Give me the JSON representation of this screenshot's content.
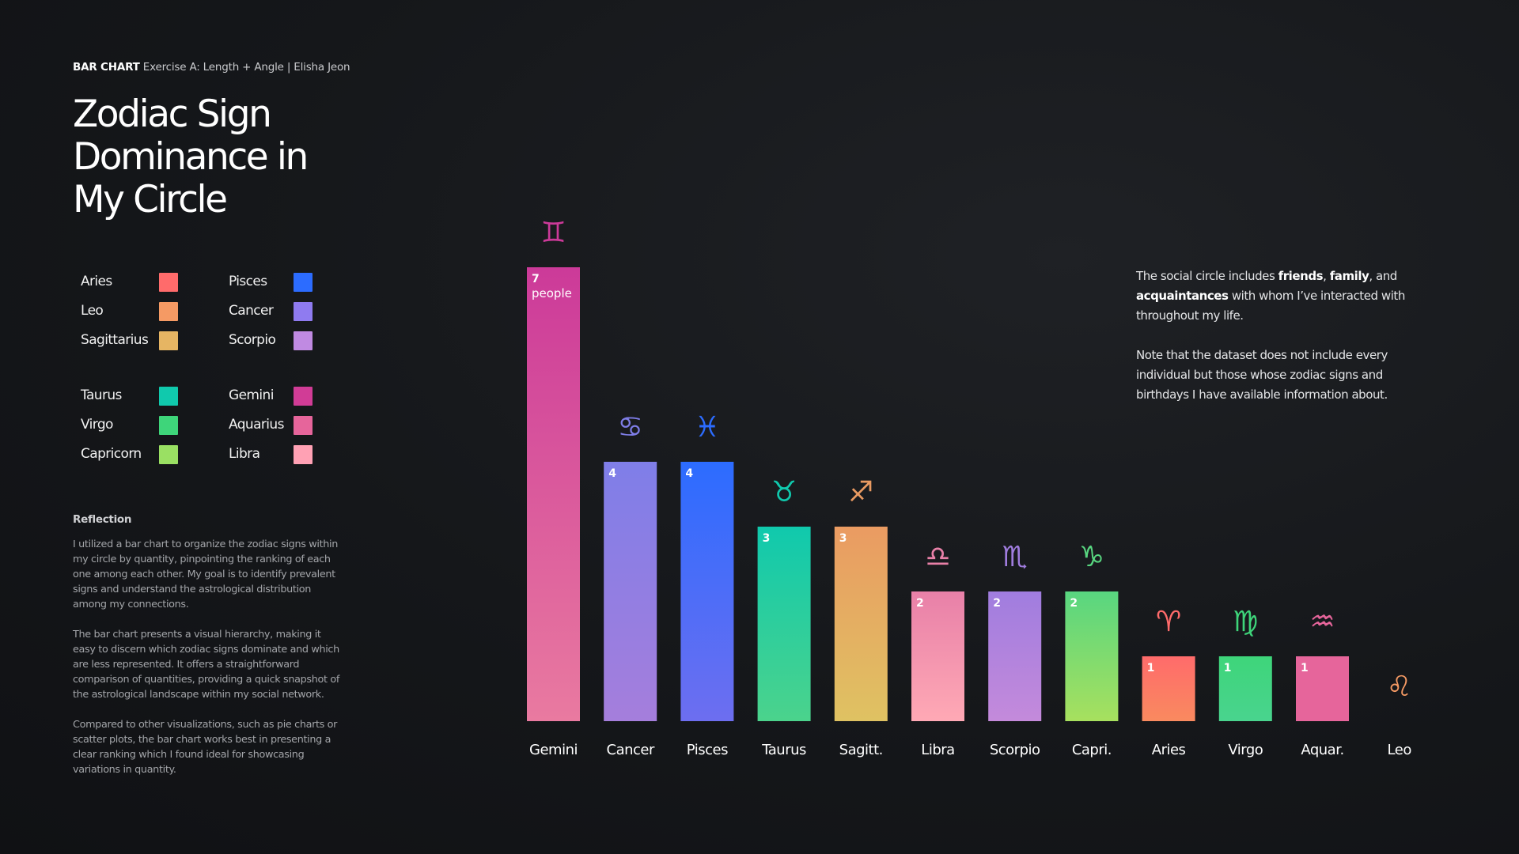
{
  "header": {
    "tag": "BAR CHART",
    "subtitle_rest": " Exercise A: Length + Angle | Elisha Jeon",
    "title": "Zodiac Sign Dominance in My Circle"
  },
  "legend": [
    {
      "label": "Aries",
      "color": "#ff6b6b"
    },
    {
      "label": "Leo",
      "color": "#f59a64"
    },
    {
      "label": "Sagittarius",
      "color": "#e6b563"
    },
    {
      "label": "Taurus",
      "color": "#10c9ad"
    },
    {
      "label": "Virgo",
      "color": "#3ed57a"
    },
    {
      "label": "Capricorn",
      "color": "#9ae063"
    },
    {
      "label": "Pisces",
      "color": "#2c6cff"
    },
    {
      "label": "Cancer",
      "color": "#8f7bf0"
    },
    {
      "label": "Scorpio",
      "color": "#c08ae2"
    },
    {
      "label": "Gemini",
      "color": "#d13c96"
    },
    {
      "label": "Aquarius",
      "color": "#e6659b"
    },
    {
      "label": "Libra",
      "color": "#ffa1b4"
    }
  ],
  "reflection": {
    "heading": "Reflection",
    "paragraphs": [
      "I utilized a bar chart to organize the zodiac signs within my circle by quantity, pinpointing the ranking of each one among each other. My goal is to identify prevalent signs and understand the astrological distribution among my connections.",
      "The bar chart presents a visual hierarchy, making it easy to discern which zodiac signs dominate and which are less represented. It offers a straightforward comparison of quantities, providing a quick snapshot of the astrological landscape within my social network.",
      "Compared to other visualizations, such as pie charts or scatter plots, the bar chart works best in presenting a clear ranking which I found ideal for showcasing variations in quantity."
    ]
  },
  "description": {
    "p1_a": "The social circle includes ",
    "p1_b1": "friends",
    "p1_c": ", ",
    "p1_b2": "family",
    "p1_d": ", and ",
    "p1_b3": "acquaintances",
    "p1_e": " with whom I’ve interacted with throughout my life.",
    "p2": "Note that the dataset does not include every individual but those whose zodiac signs and birthdays I have available information about."
  },
  "chart_data": {
    "type": "bar",
    "categories": [
      "Gemini",
      "Cancer",
      "Pisces",
      "Taurus",
      "Sagitt.",
      "Libra",
      "Scorpio",
      "Capri.",
      "Aries",
      "Virgo",
      "Aquar.",
      "Leo"
    ],
    "values": [
      7,
      4,
      4,
      3,
      3,
      2,
      2,
      2,
      1,
      1,
      1,
      0
    ],
    "value_unit": "people",
    "symbols": [
      "♊",
      "♋",
      "♓",
      "♉",
      "♐",
      "♎",
      "♏",
      "♑",
      "♈",
      "♍",
      "♒",
      "♌"
    ],
    "gradients": [
      [
        "#cc3a99",
        "#e97aa0"
      ],
      [
        "#7f7ee8",
        "#a57edc"
      ],
      [
        "#2c6cff",
        "#6d6ef0"
      ],
      [
        "#10c9ad",
        "#4bd38c"
      ],
      [
        "#ea9b62",
        "#dfc262"
      ],
      [
        "#e880a8",
        "#ffa9b5"
      ],
      [
        "#a07ddf",
        "#c48adb"
      ],
      [
        "#58d680",
        "#a7e05e"
      ],
      [
        "#ff6b6b",
        "#f98a5f"
      ],
      [
        "#3ed57a",
        "#49d48e"
      ],
      [
        "#e6659b",
        "#e6659b"
      ],
      [
        "#f59a64",
        "#f59a64"
      ]
    ]
  }
}
